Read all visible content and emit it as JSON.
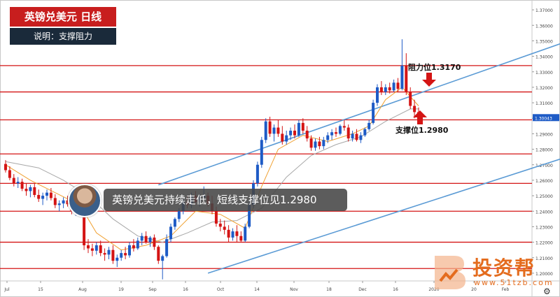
{
  "header": {
    "title": "英镑兑美元  日线",
    "subtitle": "说明：支撑阻力"
  },
  "banner_text": "英镑兑美元持续走低，短线支撑位见1.2980",
  "watermark": {
    "brand": "投资帮",
    "url": "www.51tzb.com"
  },
  "annotations": {
    "resistance_label": "阻力位1.3170",
    "support_label": "支撑位1.2980"
  },
  "icons": {
    "settings": "gear-icon",
    "avatar": "presenter-avatar"
  },
  "colors": {
    "bull": "#1e5bc6",
    "bear": "#d41414",
    "hline": "#d41414",
    "channel": "#5b9bd5",
    "ma_fast": "#f0a030",
    "ma_slow": "#a8a8a8",
    "price_tag": "#1e5bc6"
  },
  "chart_data": {
    "type": "candlestick",
    "title": "英镑兑美元  日线",
    "ylim": [
      1.195,
      1.375
    ],
    "y_ticks": [
      "1.37000",
      "1.36000",
      "1.35000",
      "1.34000",
      "1.33000",
      "1.32000",
      "1.31000",
      "1.30000",
      "1.29000",
      "1.28000",
      "1.27000",
      "1.26000",
      "1.25000",
      "1.24000",
      "1.23000",
      "1.22000",
      "1.21000",
      "1.20000"
    ],
    "x_ticks": [
      "Jul",
      "15",
      "Aug",
      "19",
      "Sep",
      "16",
      "Oct",
      "14",
      "Nov",
      "18",
      "Dec",
      "16",
      "2020",
      "20",
      "Feb"
    ],
    "current_price": "1.30043",
    "horizontal_levels": [
      1.334,
      1.317,
      1.299,
      1.277,
      1.258,
      1.24,
      1.22,
      1.203
    ],
    "key_levels": {
      "resistance": 1.317,
      "support": 1.298
    },
    "candles": [
      [
        1.2705,
        1.273,
        1.265,
        1.2665
      ],
      [
        1.2665,
        1.269,
        1.26,
        1.2615
      ],
      [
        1.2615,
        1.264,
        1.256,
        1.258
      ],
      [
        1.258,
        1.262,
        1.255,
        1.259
      ],
      [
        1.259,
        1.261,
        1.253,
        1.2545
      ],
      [
        1.2545,
        1.258,
        1.25,
        1.253
      ],
      [
        1.253,
        1.257,
        1.249,
        1.2555
      ],
      [
        1.2555,
        1.258,
        1.249,
        1.2505
      ],
      [
        1.2505,
        1.254,
        1.246,
        1.248
      ],
      [
        1.248,
        1.252,
        1.244,
        1.25
      ],
      [
        1.25,
        1.254,
        1.247,
        1.252
      ],
      [
        1.252,
        1.255,
        1.247,
        1.2485
      ],
      [
        1.2485,
        1.251,
        1.242,
        1.244
      ],
      [
        1.244,
        1.247,
        1.24,
        1.245
      ],
      [
        1.245,
        1.249,
        1.242,
        1.247
      ],
      [
        1.247,
        1.25,
        1.243,
        1.2445
      ],
      [
        1.2445,
        1.246,
        1.238,
        1.24
      ],
      [
        1.24,
        1.244,
        1.237,
        1.242
      ],
      [
        1.242,
        1.245,
        1.238,
        1.2395
      ],
      [
        1.2395,
        1.241,
        1.215,
        1.218
      ],
      [
        1.218,
        1.222,
        1.213,
        1.216
      ],
      [
        1.216,
        1.219,
        1.211,
        1.2145
      ],
      [
        1.2145,
        1.22,
        1.212,
        1.218
      ],
      [
        1.218,
        1.221,
        1.211,
        1.213
      ],
      [
        1.213,
        1.216,
        1.208,
        1.212
      ],
      [
        1.212,
        1.217,
        1.209,
        1.215
      ],
      [
        1.215,
        1.218,
        1.206,
        1.208
      ],
      [
        1.208,
        1.212,
        1.204,
        1.21
      ],
      [
        1.21,
        1.215,
        1.208,
        1.213
      ],
      [
        1.213,
        1.217,
        1.209,
        1.2115
      ],
      [
        1.2115,
        1.22,
        1.21,
        1.218
      ],
      [
        1.218,
        1.222,
        1.214,
        1.216
      ],
      [
        1.216,
        1.223,
        1.215,
        1.221
      ],
      [
        1.221,
        1.226,
        1.218,
        1.224
      ],
      [
        1.224,
        1.227,
        1.219,
        1.22
      ],
      [
        1.22,
        1.224,
        1.217,
        1.223
      ],
      [
        1.223,
        1.225,
        1.215,
        1.217
      ],
      [
        1.217,
        1.218,
        1.206,
        1.208
      ],
      [
        1.208,
        1.212,
        1.196,
        1.211
      ],
      [
        1.211,
        1.225,
        1.21,
        1.222
      ],
      [
        1.222,
        1.232,
        1.22,
        1.23
      ],
      [
        1.23,
        1.236,
        1.228,
        1.235
      ],
      [
        1.235,
        1.242,
        1.233,
        1.24
      ],
      [
        1.24,
        1.248,
        1.238,
        1.246
      ],
      [
        1.246,
        1.25,
        1.242,
        1.244
      ],
      [
        1.244,
        1.252,
        1.242,
        1.25
      ],
      [
        1.25,
        1.253,
        1.244,
        1.246
      ],
      [
        1.246,
        1.251,
        1.243,
        1.249
      ],
      [
        1.249,
        1.256,
        1.247,
        1.25
      ],
      [
        1.25,
        1.252,
        1.243,
        1.245
      ],
      [
        1.245,
        1.25,
        1.238,
        1.24
      ],
      [
        1.24,
        1.243,
        1.23,
        1.232
      ],
      [
        1.232,
        1.235,
        1.227,
        1.23
      ],
      [
        1.23,
        1.234,
        1.225,
        1.228
      ],
      [
        1.228,
        1.231,
        1.22,
        1.223
      ],
      [
        1.223,
        1.229,
        1.221,
        1.227
      ],
      [
        1.227,
        1.231,
        1.22,
        1.224
      ],
      [
        1.224,
        1.227,
        1.22,
        1.221
      ],
      [
        1.221,
        1.232,
        1.22,
        1.23
      ],
      [
        1.23,
        1.246,
        1.229,
        1.244
      ],
      [
        1.244,
        1.26,
        1.242,
        1.258
      ],
      [
        1.258,
        1.272,
        1.256,
        1.27
      ],
      [
        1.27,
        1.288,
        1.268,
        1.286
      ],
      [
        1.286,
        1.3,
        1.284,
        1.298
      ],
      [
        1.298,
        1.301,
        1.288,
        1.29
      ],
      [
        1.29,
        1.296,
        1.285,
        1.294
      ],
      [
        1.294,
        1.299,
        1.288,
        1.29
      ],
      [
        1.29,
        1.295,
        1.283,
        1.285
      ],
      [
        1.285,
        1.292,
        1.283,
        1.289
      ],
      [
        1.289,
        1.294,
        1.286,
        1.292
      ],
      [
        1.292,
        1.296,
        1.287,
        1.289
      ],
      [
        1.289,
        1.299,
        1.288,
        1.297
      ],
      [
        1.297,
        1.3,
        1.29,
        1.292
      ],
      [
        1.292,
        1.295,
        1.285,
        1.287
      ],
      [
        1.287,
        1.289,
        1.279,
        1.281
      ],
      [
        1.281,
        1.287,
        1.279,
        1.285
      ],
      [
        1.285,
        1.288,
        1.28,
        1.282
      ],
      [
        1.282,
        1.288,
        1.28,
        1.286
      ],
      [
        1.286,
        1.291,
        1.284,
        1.289
      ],
      [
        1.289,
        1.293,
        1.286,
        1.291
      ],
      [
        1.291,
        1.294,
        1.288,
        1.29
      ],
      [
        1.29,
        1.296,
        1.289,
        1.295
      ],
      [
        1.295,
        1.299,
        1.292,
        1.294
      ],
      [
        1.294,
        1.296,
        1.285,
        1.287
      ],
      [
        1.287,
        1.292,
        1.285,
        1.29
      ],
      [
        1.29,
        1.293,
        1.285,
        1.286
      ],
      [
        1.286,
        1.291,
        1.284,
        1.289
      ],
      [
        1.289,
        1.294,
        1.288,
        1.293
      ],
      [
        1.293,
        1.299,
        1.292,
        1.297
      ],
      [
        1.297,
        1.312,
        1.296,
        1.31
      ],
      [
        1.31,
        1.322,
        1.308,
        1.32
      ],
      [
        1.32,
        1.324,
        1.315,
        1.317
      ],
      [
        1.317,
        1.322,
        1.315,
        1.32
      ],
      [
        1.32,
        1.323,
        1.316,
        1.318
      ],
      [
        1.318,
        1.325,
        1.317,
        1.323
      ],
      [
        1.323,
        1.326,
        1.317,
        1.319
      ],
      [
        1.319,
        1.351,
        1.318,
        1.334
      ],
      [
        1.334,
        1.342,
        1.315,
        1.317
      ],
      [
        1.317,
        1.32,
        1.306,
        1.308
      ],
      [
        1.308,
        1.312,
        1.3,
        1.304
      ],
      [
        1.304,
        1.307,
        1.298,
        1.3004
      ]
    ],
    "ma_fast": [
      [
        0,
        1.27
      ],
      [
        6,
        1.26
      ],
      [
        12,
        1.252
      ],
      [
        18,
        1.244
      ],
      [
        22,
        1.226
      ],
      [
        28,
        1.215
      ],
      [
        34,
        1.218
      ],
      [
        40,
        1.224
      ],
      [
        46,
        1.24
      ],
      [
        52,
        1.238
      ],
      [
        58,
        1.229
      ],
      [
        62,
        1.256
      ],
      [
        66,
        1.28
      ],
      [
        72,
        1.289
      ],
      [
        78,
        1.285
      ],
      [
        84,
        1.29
      ],
      [
        88,
        1.295
      ],
      [
        92,
        1.312
      ],
      [
        96,
        1.32
      ],
      [
        100,
        1.308
      ]
    ],
    "ma_slow": [
      [
        0,
        1.272
      ],
      [
        8,
        1.268
      ],
      [
        14,
        1.26
      ],
      [
        20,
        1.25
      ],
      [
        26,
        1.235
      ],
      [
        32,
        1.224
      ],
      [
        38,
        1.22
      ],
      [
        44,
        1.226
      ],
      [
        50,
        1.233
      ],
      [
        56,
        1.234
      ],
      [
        62,
        1.242
      ],
      [
        68,
        1.262
      ],
      [
        74,
        1.276
      ],
      [
        80,
        1.283
      ],
      [
        86,
        1.288
      ],
      [
        92,
        1.298
      ],
      [
        98,
        1.306
      ],
      [
        100,
        1.306
      ]
    ],
    "channel_lines": [
      [
        [
          37,
          1.257
        ],
        [
          147,
          1.36
        ]
      ],
      [
        [
          49,
          1.2
        ],
        [
          159,
          1.295
        ]
      ]
    ]
  }
}
